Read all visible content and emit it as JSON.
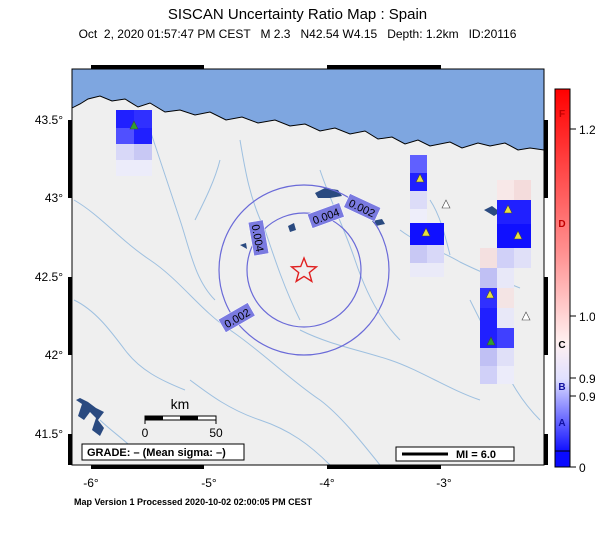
{
  "title": "SISCAN Uncertainty Ratio Map : Spain",
  "subtitle": "Oct  2, 2020 01:57:47 PM CEST   M 2.3   N42.54 W4.15   Depth: 1.2km   ID:20116",
  "footer": "Map Version 1 Processed 2020-10-02 02:00:05 PM CEST",
  "map": {
    "lon_range": [
      -6.25,
      -2.25
    ],
    "lat_range": [
      41.37,
      43.72
    ],
    "lon_ticks": [
      "-6°",
      "-5°",
      "-4°",
      "-3°"
    ],
    "lat_ticks": [
      "43.5°",
      "43°",
      "42.5°",
      "42°",
      "41.5°"
    ],
    "epicenter": {
      "lon": -4.15,
      "lat": 42.54
    },
    "contours": [
      {
        "label": "0.004"
      },
      {
        "label": "0.004"
      },
      {
        "label": "0.002"
      },
      {
        "label": "0.002"
      }
    ],
    "scalebar": {
      "title": "km",
      "left": "0",
      "right": "50"
    },
    "grade_text": "GRADE: – (Mean sigma: –)",
    "mi_text": "MI = 6.0",
    "colors": {
      "sea": "#7ea6e0",
      "land": "#efefef",
      "river": "#9ec0e0",
      "contour": "#6a6ad8",
      "epicenter": "#e02020"
    }
  },
  "colorbar": {
    "ticks": [
      {
        "label": "1.2",
        "value": 1.2
      },
      {
        "label": "1.0",
        "value": 1.0
      },
      {
        "label": "0.9",
        "value": 0.9
      },
      {
        "label": "0.9",
        "value": 0.88
      },
      {
        "label": "0",
        "value": 0
      }
    ],
    "grades": [
      {
        "label": "F",
        "color": "#c00000"
      },
      {
        "label": "D",
        "color": "#c00000"
      },
      {
        "label": "C",
        "color": "#000000"
      },
      {
        "label": "B",
        "color": "#1010a0"
      },
      {
        "label": "A",
        "color": "#1010a0"
      }
    ]
  }
}
